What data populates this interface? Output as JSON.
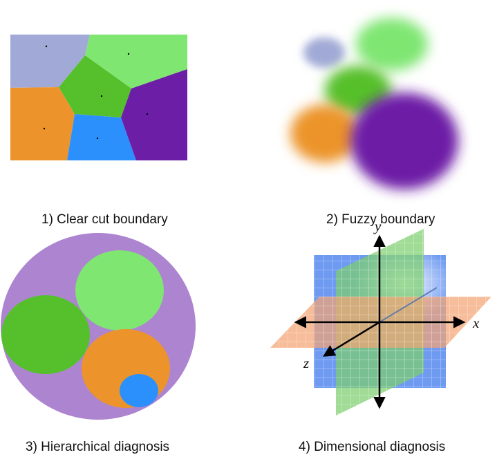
{
  "panels": [
    {
      "caption": "1) Clear cut boundary"
    },
    {
      "caption": "2) Fuzzy boundary"
    },
    {
      "caption": "3) Hierarchical diagnosis"
    },
    {
      "caption": "4) Dimensional diagnosis"
    }
  ],
  "axes": {
    "x": "x",
    "y": "y",
    "z": "z"
  },
  "colors": {
    "periwinkle": "#a1aad6",
    "light_green": "#7fe672",
    "green": "#56c02c",
    "orange": "#ec942b",
    "blue": "#2b90fb",
    "purple": "#6d1ea6",
    "lavender": "#ad84d0",
    "grid_blue": "#5f8ff0",
    "plane_green": "#7ccf6e",
    "plane_orange": "#f4a373"
  }
}
